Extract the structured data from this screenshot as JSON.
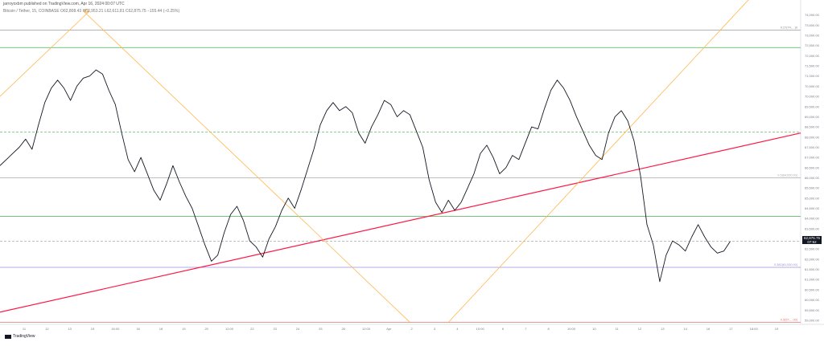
{
  "header": {
    "publisher": "jarroyoxbm published on TradingView.com, Apr 16, 2024 00:07 UTC",
    "ohlc": "Bitcoin / Tether, 15, COINBASE   O62,808.43  H62,953.21  L62,611.81  C62,875.75  −155.44 (−0.25%)"
  },
  "price_tag": {
    "price": "62,875.75",
    "countdown": "07:52"
  },
  "brand": "TradingView",
  "chart_data": {
    "type": "line",
    "title": "",
    "y_ticks": [
      59000,
      59500,
      60000,
      60500,
      61000,
      61500,
      62000,
      62500,
      63000,
      63500,
      64000,
      64500,
      65000,
      65500,
      66000,
      66500,
      67000,
      67500,
      68000,
      68500,
      69000,
      69500,
      70000,
      70500,
      71000,
      71500,
      72000,
      72500,
      73000,
      73500,
      74000
    ],
    "y_range": [
      58800,
      74500
    ],
    "x_ticks": [
      "11",
      "12",
      "13",
      "15",
      "16:00",
      "16",
      "18",
      "19",
      "20",
      "12:00",
      "22",
      "23",
      "24",
      "25",
      "26",
      "12:00",
      "Apr",
      "2",
      "3",
      "4",
      "10:00",
      "6",
      "7",
      "8",
      "10:00",
      "10",
      "11",
      "12",
      "13",
      "14",
      "16",
      "17",
      "18:00",
      "19"
    ],
    "price_series": [
      [
        0,
        66600
      ],
      [
        2,
        66900
      ],
      [
        4,
        67200
      ],
      [
        6,
        67500
      ],
      [
        8,
        67900
      ],
      [
        10,
        67400
      ],
      [
        12,
        68600
      ],
      [
        14,
        69700
      ],
      [
        16,
        70400
      ],
      [
        18,
        70800
      ],
      [
        20,
        70400
      ],
      [
        22,
        69800
      ],
      [
        24,
        70500
      ],
      [
        26,
        70900
      ],
      [
        28,
        71000
      ],
      [
        30,
        71300
      ],
      [
        32,
        71100
      ],
      [
        34,
        70300
      ],
      [
        36,
        69600
      ],
      [
        38,
        68200
      ],
      [
        40,
        66900
      ],
      [
        42,
        66300
      ],
      [
        44,
        67000
      ],
      [
        46,
        66200
      ],
      [
        48,
        65400
      ],
      [
        50,
        64900
      ],
      [
        52,
        65700
      ],
      [
        54,
        66600
      ],
      [
        56,
        65800
      ],
      [
        58,
        65100
      ],
      [
        60,
        64500
      ],
      [
        62,
        63600
      ],
      [
        64,
        62700
      ],
      [
        66,
        61900
      ],
      [
        68,
        62200
      ],
      [
        70,
        63300
      ],
      [
        72,
        64200
      ],
      [
        74,
        64600
      ],
      [
        76,
        63900
      ],
      [
        78,
        62900
      ],
      [
        80,
        62600
      ],
      [
        82,
        62100
      ],
      [
        84,
        63000
      ],
      [
        86,
        63600
      ],
      [
        88,
        64400
      ],
      [
        90,
        65000
      ],
      [
        92,
        64500
      ],
      [
        94,
        65400
      ],
      [
        96,
        66400
      ],
      [
        98,
        67400
      ],
      [
        100,
        68600
      ],
      [
        102,
        69300
      ],
      [
        104,
        69700
      ],
      [
        106,
        69300
      ],
      [
        108,
        69500
      ],
      [
        110,
        69200
      ],
      [
        112,
        68200
      ],
      [
        114,
        67700
      ],
      [
        116,
        68500
      ],
      [
        118,
        69100
      ],
      [
        120,
        69800
      ],
      [
        122,
        69600
      ],
      [
        124,
        69000
      ],
      [
        126,
        69300
      ],
      [
        128,
        69100
      ],
      [
        130,
        68300
      ],
      [
        132,
        67500
      ],
      [
        134,
        65900
      ],
      [
        136,
        64800
      ],
      [
        138,
        64300
      ],
      [
        140,
        64900
      ],
      [
        142,
        64400
      ],
      [
        144,
        64800
      ],
      [
        146,
        65500
      ],
      [
        148,
        66200
      ],
      [
        150,
        67200
      ],
      [
        152,
        67600
      ],
      [
        154,
        67000
      ],
      [
        156,
        66200
      ],
      [
        158,
        66500
      ],
      [
        160,
        67100
      ],
      [
        162,
        66900
      ],
      [
        164,
        67700
      ],
      [
        166,
        68500
      ],
      [
        168,
        68400
      ],
      [
        170,
        69400
      ],
      [
        172,
        70300
      ],
      [
        174,
        70800
      ],
      [
        176,
        70400
      ],
      [
        178,
        69800
      ],
      [
        180,
        69000
      ],
      [
        182,
        68300
      ],
      [
        184,
        67600
      ],
      [
        186,
        67100
      ],
      [
        188,
        66900
      ],
      [
        190,
        68200
      ],
      [
        192,
        69000
      ],
      [
        194,
        69300
      ],
      [
        196,
        68800
      ],
      [
        198,
        67800
      ],
      [
        200,
        66100
      ],
      [
        202,
        63700
      ],
      [
        204,
        62700
      ],
      [
        206,
        60900
      ],
      [
        208,
        62200
      ],
      [
        210,
        62900
      ],
      [
        212,
        62700
      ],
      [
        214,
        62400
      ],
      [
        216,
        63100
      ],
      [
        218,
        63700
      ],
      [
        220,
        63100
      ],
      [
        222,
        62600
      ],
      [
        224,
        62300
      ],
      [
        226,
        62400
      ],
      [
        228,
        62875
      ]
    ],
    "price_x_range": [
      0,
      250
    ],
    "horizontal_levels": [
      {
        "price": 73250,
        "color": "#888888",
        "style": "solid",
        "label": "0.27(74,…)0"
      },
      {
        "price": 72400,
        "color": "#4caf50",
        "style": "solid",
        "label": ""
      },
      {
        "price": 68250,
        "color": "#4caf50",
        "style": "dashed",
        "label": ""
      },
      {
        "price": 66000,
        "color": "#aaaaaa",
        "style": "solid",
        "label": "0.5(64,650.00)"
      },
      {
        "price": 64100,
        "color": "#4caf50",
        "style": "solid",
        "label": ""
      },
      {
        "price": 62875,
        "color": "#999999",
        "style": "dashed",
        "label": ""
      },
      {
        "price": 61600,
        "color": "#9c8fd9",
        "style": "solid",
        "label": "0.382(61,530.00)"
      },
      {
        "price": 58900,
        "color": "#e57373",
        "style": "solid",
        "label": "0.5(57,…00)"
      }
    ],
    "trend_lines": [
      {
        "from": [
          0,
          59400
        ],
        "to": [
          250,
          68200
        ],
        "color": "#ff1744",
        "width": 1.2
      },
      {
        "from": [
          0,
          70000
        ],
        "to": [
          28,
          74200
        ],
        "color": "#ffb74d",
        "width": 0.8
      },
      {
        "from": [
          26,
          74200
        ],
        "to": [
          128,
          58900
        ],
        "color": "#ffb74d",
        "width": 0.8
      },
      {
        "from": [
          140,
          58900
        ],
        "to": [
          250,
          77500
        ],
        "color": "#ffb74d",
        "width": 0.8
      }
    ],
    "marker": {
      "at": [
        27,
        74200
      ],
      "color": "#ffb74d"
    }
  }
}
